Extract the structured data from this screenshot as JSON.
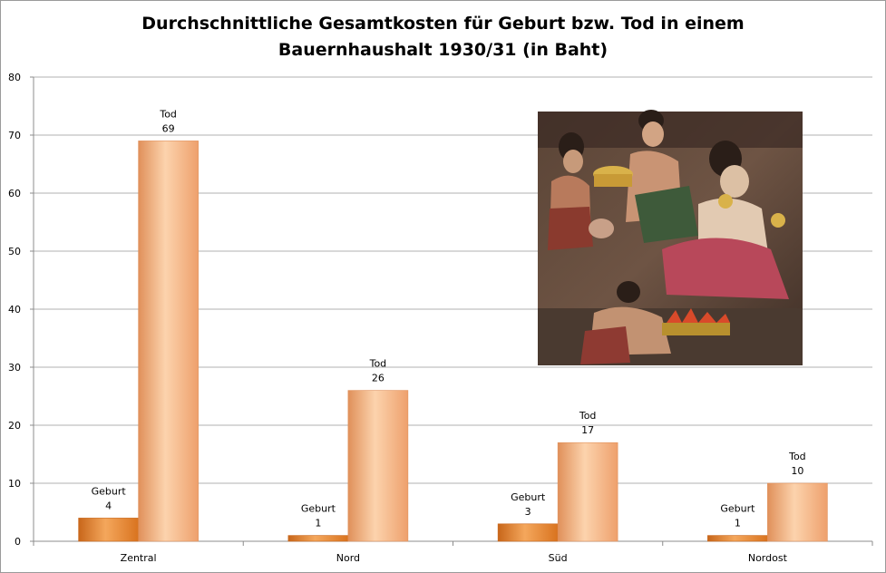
{
  "chart_data": {
    "type": "bar",
    "title_line1": "Durchschnittliche Gesamtkosten für Geburt bzw. Tod in einem",
    "title_line2": "Bauernhaushalt 1930/31 (in Baht)",
    "categories": [
      "Zentral",
      "Nord",
      "Süd",
      "Nordost"
    ],
    "series": [
      {
        "name": "Geburt",
        "values": [
          4,
          1,
          3,
          1
        ],
        "color": "#e8822a",
        "color_light": "#f4a75c",
        "color_dark": "#c8661a"
      },
      {
        "name": "Tod",
        "values": [
          69,
          26,
          17,
          10
        ],
        "color": "#f7b07a",
        "color_light": "#fbcfa4",
        "color_dark": "#e0905a"
      }
    ],
    "ylim": [
      0,
      80
    ],
    "yticks": [
      0,
      10,
      20,
      30,
      40,
      50,
      60,
      70,
      80
    ],
    "grid": true,
    "legend": "none",
    "data_labels": "series name and value above each bar",
    "inset_image": "thai-mural-painting"
  }
}
